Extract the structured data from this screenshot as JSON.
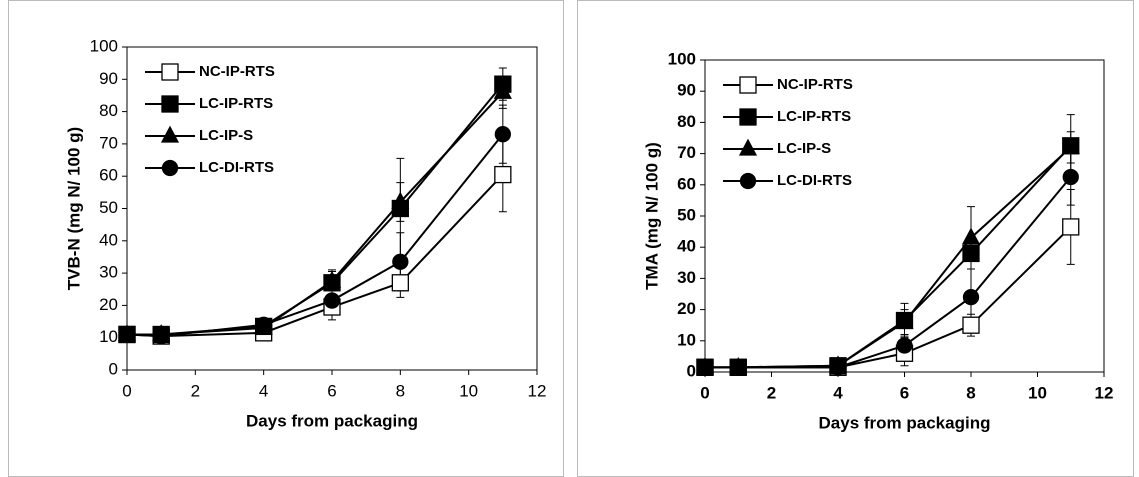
{
  "chart_data": [
    {
      "type": "line",
      "x_label": "Days from packaging",
      "y_label": "TVB-N (mg N/ 100 g)",
      "x": [
        0,
        1,
        4,
        6,
        8,
        11
      ],
      "xlim": [
        0,
        12
      ],
      "xticks": [
        0,
        2,
        4,
        6,
        8,
        10,
        12
      ],
      "ylim": [
        0,
        100
      ],
      "yticks": [
        0,
        10,
        20,
        30,
        40,
        50,
        60,
        70,
        80,
        90,
        100
      ],
      "bold_ticks": false,
      "series": [
        {
          "name": "NC-IP-RTS",
          "color": "#000000",
          "marker": "square-open",
          "values": [
            11,
            10.5,
            11.5,
            19.5,
            27,
            60.5
          ],
          "errors": [
            1,
            1,
            1,
            4,
            4.5,
            11.5
          ]
        },
        {
          "name": "LC-IP-RTS",
          "color": "#000000",
          "marker": "square",
          "values": [
            11,
            11,
            13.5,
            27,
            50,
            88.5
          ],
          "errors": [
            1,
            1,
            1,
            4,
            15.5,
            5
          ]
        },
        {
          "name": "LC-IP-S",
          "color": "#000000",
          "marker": "triangle",
          "values": [
            11,
            11,
            13,
            27.5,
            52,
            86
          ],
          "errors": [
            1,
            1,
            1,
            3,
            6,
            5
          ]
        },
        {
          "name": "LC-DI-RTS",
          "color": "#000000",
          "marker": "circle",
          "values": [
            11,
            10.5,
            14,
            21.5,
            33.5,
            73
          ],
          "errors": [
            1,
            1,
            1,
            3,
            9,
            9
          ]
        }
      ]
    },
    {
      "type": "line",
      "x_label": "Days from packaging",
      "y_label": "TMA (mg N/ 100 g)",
      "x": [
        0,
        1,
        4,
        6,
        8,
        11
      ],
      "xlim": [
        0,
        12
      ],
      "xticks": [
        0,
        2,
        4,
        6,
        8,
        10,
        12
      ],
      "ylim": [
        0,
        100
      ],
      "yticks": [
        0,
        10,
        20,
        30,
        40,
        50,
        60,
        70,
        80,
        90,
        100
      ],
      "bold_ticks": true,
      "series": [
        {
          "name": "NC-IP-RTS",
          "color": "#000000",
          "marker": "square-open",
          "values": [
            1.5,
            1.5,
            1.5,
            6,
            15,
            46.5
          ],
          "errors": [
            0.5,
            0.5,
            0.5,
            4,
            3.5,
            12
          ]
        },
        {
          "name": "LC-IP-RTS",
          "color": "#000000",
          "marker": "square",
          "values": [
            1.5,
            1.5,
            2,
            16.5,
            38,
            72.5
          ],
          "errors": [
            0.5,
            0.5,
            0.5,
            5.5,
            5,
            10
          ]
        },
        {
          "name": "LC-IP-S",
          "color": "#000000",
          "marker": "triangle",
          "values": [
            1.5,
            1.5,
            2,
            16,
            43,
            72
          ],
          "errors": [
            0.5,
            0.5,
            0.5,
            4,
            10,
            5
          ]
        },
        {
          "name": "LC-DI-RTS",
          "color": "#000000",
          "marker": "circle",
          "values": [
            1.5,
            1.5,
            1.5,
            8.5,
            24,
            62.5
          ],
          "errors": [
            0.5,
            0.5,
            0.5,
            3,
            9,
            9
          ]
        }
      ]
    }
  ]
}
